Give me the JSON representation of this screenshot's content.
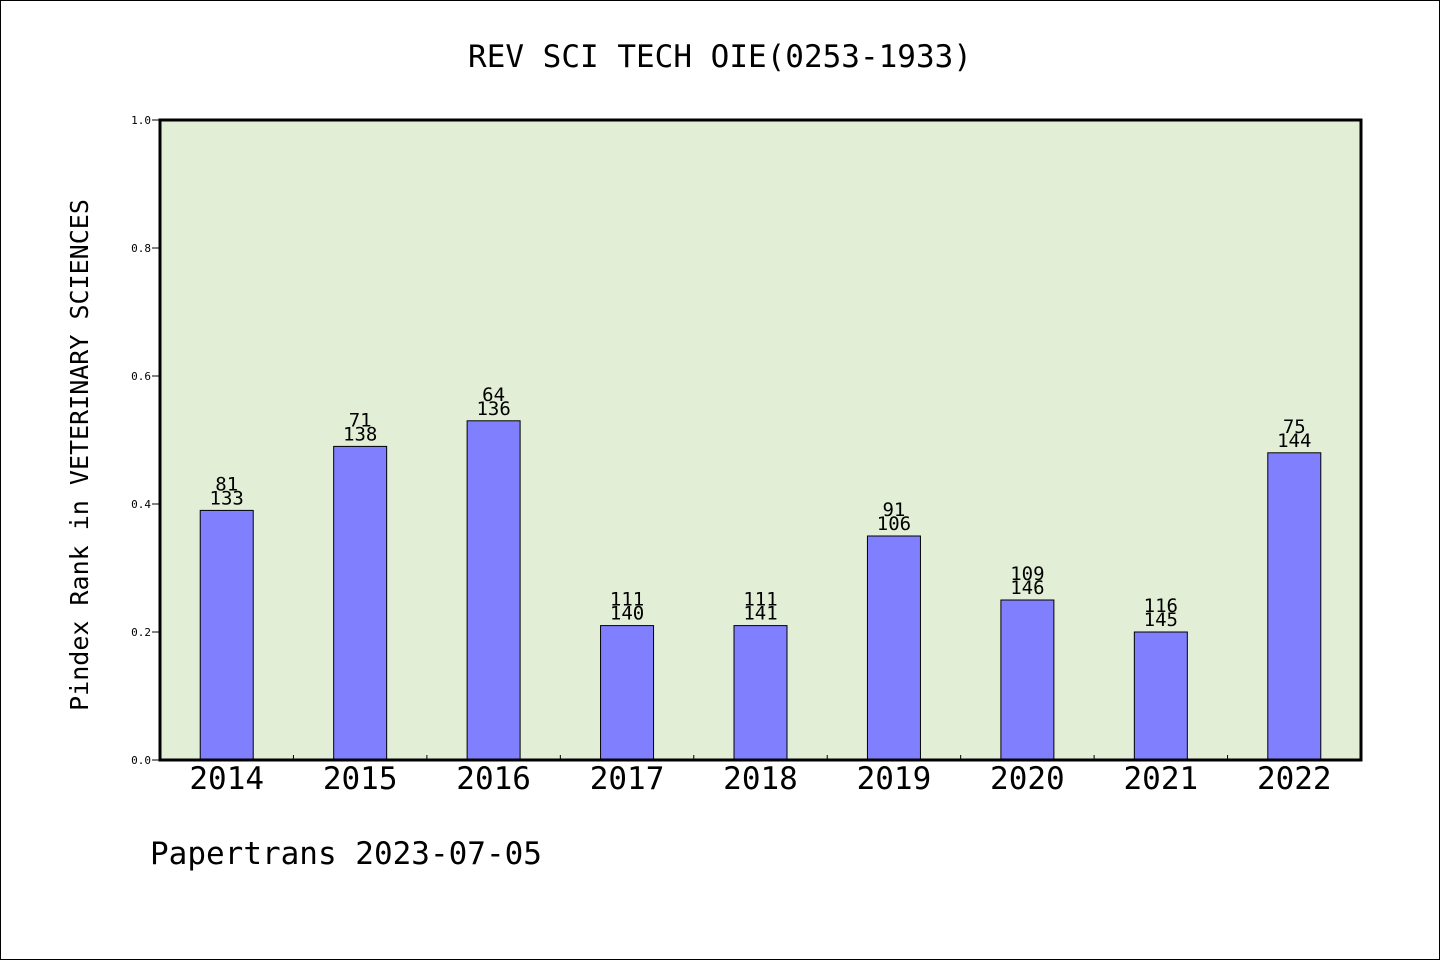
{
  "chart_data": {
    "type": "bar",
    "title": "REV SCI TECH OIE(0253-1933)",
    "ylabel": "Pindex Rank in VETERINARY SCIENCES",
    "xlabel": "",
    "categories": [
      "2014",
      "2015",
      "2016",
      "2017",
      "2018",
      "2019",
      "2020",
      "2021",
      "2022"
    ],
    "values": [
      0.39,
      0.49,
      0.53,
      0.21,
      0.21,
      0.35,
      0.25,
      0.2,
      0.48
    ],
    "labels_top": [
      "81",
      "71",
      "64",
      "111",
      "111",
      "91",
      "109",
      "116",
      "75"
    ],
    "labels_bottom": [
      "133",
      "138",
      "136",
      "140",
      "141",
      "106",
      "146",
      "145",
      "144"
    ],
    "ylim": [
      0,
      1.0
    ],
    "yticks": [
      "0.0",
      "0.2",
      "0.4",
      "0.6",
      "0.8",
      "1.0"
    ],
    "grid": false,
    "bar_color": "#8080ff",
    "plot_background": "#e2efd6"
  },
  "footer": "Papertrans 2023-07-05"
}
